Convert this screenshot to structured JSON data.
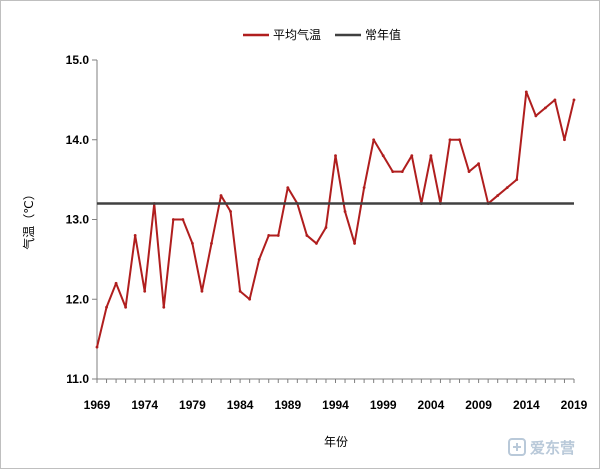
{
  "chart_data": {
    "type": "line",
    "title": "",
    "xlabel": "年份",
    "ylabel": "气温（℃）",
    "ylim": [
      11.0,
      15.0
    ],
    "y_ticks": [
      "11.0",
      "12.0",
      "13.0",
      "14.0",
      "15.0"
    ],
    "x_range": [
      1969,
      2019
    ],
    "x_ticks": [
      "1969",
      "1974",
      "1979",
      "1984",
      "1989",
      "1994",
      "1999",
      "2004",
      "2009",
      "2014",
      "2019"
    ],
    "grid": false,
    "legend_position": "top-center",
    "series": [
      {
        "name": "平均气温",
        "color": "#b01e1e",
        "x": [
          1969,
          1970,
          1971,
          1972,
          1973,
          1974,
          1975,
          1976,
          1977,
          1978,
          1979,
          1980,
          1981,
          1982,
          1983,
          1984,
          1985,
          1986,
          1987,
          1988,
          1989,
          1990,
          1991,
          1992,
          1993,
          1994,
          1995,
          1996,
          1997,
          1998,
          1999,
          2000,
          2001,
          2002,
          2003,
          2004,
          2005,
          2006,
          2007,
          2008,
          2009,
          2010,
          2011,
          2012,
          2013,
          2014,
          2015,
          2016,
          2017,
          2018,
          2019
        ],
        "values": [
          11.4,
          11.9,
          12.2,
          11.9,
          12.8,
          12.1,
          13.2,
          11.9,
          13.0,
          13.0,
          12.7,
          12.1,
          12.7,
          13.3,
          13.1,
          12.1,
          12.0,
          12.5,
          12.8,
          12.8,
          13.4,
          13.2,
          12.8,
          12.7,
          12.9,
          13.8,
          13.1,
          12.7,
          13.4,
          14.0,
          13.8,
          13.6,
          13.6,
          13.8,
          13.2,
          13.8,
          13.2,
          14.0,
          14.0,
          13.6,
          13.7,
          13.2,
          13.3,
          13.4,
          13.5,
          14.6,
          14.3,
          14.4,
          14.5,
          14.0,
          14.5
        ]
      },
      {
        "name": "常年值",
        "color": "#404040",
        "x": [
          1969,
          2019
        ],
        "values": [
          13.2,
          13.2
        ]
      }
    ]
  },
  "watermark": {
    "text": "爱东营"
  }
}
